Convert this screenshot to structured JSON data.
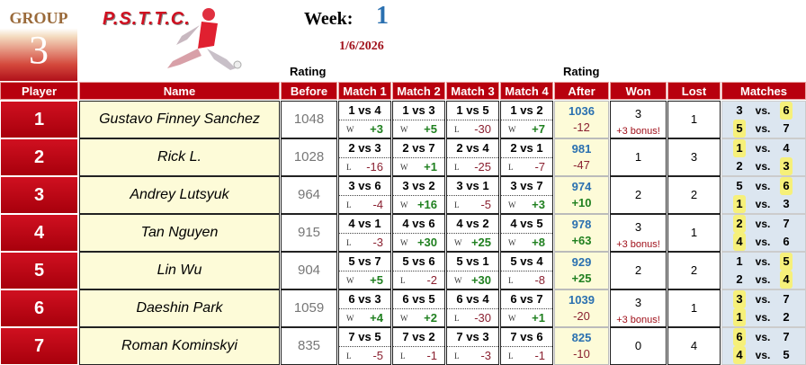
{
  "group": {
    "label": "GROUP",
    "number": "3"
  },
  "logo": {
    "text": "P.S.T.T.C."
  },
  "week": {
    "label": "Week:",
    "number": "1",
    "date": "1/6/2026"
  },
  "rating_label_before": "Rating",
  "rating_label_after": "Rating",
  "headers": [
    "Player",
    "Name",
    "Before",
    "Match 1",
    "Match 2",
    "Match 3",
    "Match 4",
    "After",
    "Won",
    "Lost",
    "Matches"
  ],
  "vs_label": "vs.",
  "colors": {
    "header": "#b8000e",
    "positive": "#208020",
    "negative": "#8a2030",
    "after_rating": "#2a70b0",
    "highlight": "#f6f07a"
  },
  "rows": [
    {
      "player": "1",
      "name": "Gustavo Finney Sanchez",
      "before": "1048",
      "matches": [
        {
          "vs": "1 vs 4",
          "wl": "W",
          "delta": "+3"
        },
        {
          "vs": "1 vs 3",
          "wl": "W",
          "delta": "+5"
        },
        {
          "vs": "1 vs 5",
          "wl": "L",
          "delta": "-30"
        },
        {
          "vs": "1 vs 2",
          "wl": "W",
          "delta": "+7"
        }
      ],
      "after": "1036",
      "change": "-12",
      "won": "3",
      "bonus": "+3 bonus!",
      "lost": "1",
      "pairs": [
        {
          "a": "3",
          "b": "6",
          "winner": "b"
        },
        {
          "a": "5",
          "b": "7",
          "winner": "a"
        }
      ]
    },
    {
      "player": "2",
      "name": "Rick L.",
      "before": "1028",
      "matches": [
        {
          "vs": "2 vs 3",
          "wl": "L",
          "delta": "-16"
        },
        {
          "vs": "2 vs 7",
          "wl": "W",
          "delta": "+1"
        },
        {
          "vs": "2 vs 4",
          "wl": "L",
          "delta": "-25"
        },
        {
          "vs": "2 vs 1",
          "wl": "L",
          "delta": "-7"
        }
      ],
      "after": "981",
      "change": "-47",
      "won": "1",
      "bonus": "",
      "lost": "3",
      "pairs": [
        {
          "a": "1",
          "b": "4",
          "winner": "a"
        },
        {
          "a": "2",
          "b": "3",
          "winner": "b"
        }
      ]
    },
    {
      "player": "3",
      "name": "Andrey Lutsyuk",
      "before": "964",
      "matches": [
        {
          "vs": "3 vs 6",
          "wl": "L",
          "delta": "-4"
        },
        {
          "vs": "3 vs 2",
          "wl": "W",
          "delta": "+16"
        },
        {
          "vs": "3 vs 1",
          "wl": "L",
          "delta": "-5"
        },
        {
          "vs": "3 vs 7",
          "wl": "W",
          "delta": "+3"
        }
      ],
      "after": "974",
      "change": "+10",
      "won": "2",
      "bonus": "",
      "lost": "2",
      "pairs": [
        {
          "a": "5",
          "b": "6",
          "winner": "b"
        },
        {
          "a": "1",
          "b": "3",
          "winner": "a"
        }
      ]
    },
    {
      "player": "4",
      "name": "Tan Nguyen",
      "before": "915",
      "matches": [
        {
          "vs": "4 vs 1",
          "wl": "L",
          "delta": "-3"
        },
        {
          "vs": "4 vs 6",
          "wl": "W",
          "delta": "+30"
        },
        {
          "vs": "4 vs 2",
          "wl": "W",
          "delta": "+25"
        },
        {
          "vs": "4 vs 5",
          "wl": "W",
          "delta": "+8"
        }
      ],
      "after": "978",
      "change": "+63",
      "won": "3",
      "bonus": "+3 bonus!",
      "lost": "1",
      "pairs": [
        {
          "a": "2",
          "b": "7",
          "winner": "a"
        },
        {
          "a": "4",
          "b": "6",
          "winner": "a"
        }
      ]
    },
    {
      "player": "5",
      "name": "Lin Wu",
      "before": "904",
      "matches": [
        {
          "vs": "5 vs 7",
          "wl": "W",
          "delta": "+5"
        },
        {
          "vs": "5 vs 6",
          "wl": "L",
          "delta": "-2"
        },
        {
          "vs": "5 vs 1",
          "wl": "W",
          "delta": "+30"
        },
        {
          "vs": "5 vs 4",
          "wl": "L",
          "delta": "-8"
        }
      ],
      "after": "929",
      "change": "+25",
      "won": "2",
      "bonus": "",
      "lost": "2",
      "pairs": [
        {
          "a": "1",
          "b": "5",
          "winner": "b"
        },
        {
          "a": "2",
          "b": "4",
          "winner": "b"
        }
      ]
    },
    {
      "player": "6",
      "name": "Daeshin Park",
      "before": "1059",
      "matches": [
        {
          "vs": "6 vs 3",
          "wl": "W",
          "delta": "+4"
        },
        {
          "vs": "6 vs 5",
          "wl": "W",
          "delta": "+2"
        },
        {
          "vs": "6 vs 4",
          "wl": "L",
          "delta": "-30"
        },
        {
          "vs": "6 vs 7",
          "wl": "W",
          "delta": "+1"
        }
      ],
      "after": "1039",
      "change": "-20",
      "won": "3",
      "bonus": "+3 bonus!",
      "lost": "1",
      "pairs": [
        {
          "a": "3",
          "b": "7",
          "winner": "a"
        },
        {
          "a": "1",
          "b": "2",
          "winner": "a"
        }
      ]
    },
    {
      "player": "7",
      "name": "Roman Kominskyi",
      "before": "835",
      "matches": [
        {
          "vs": "7 vs 5",
          "wl": "L",
          "delta": "-5"
        },
        {
          "vs": "7 vs 2",
          "wl": "L",
          "delta": "-1"
        },
        {
          "vs": "7 vs 3",
          "wl": "L",
          "delta": "-3"
        },
        {
          "vs": "7 vs 6",
          "wl": "L",
          "delta": "-1"
        }
      ],
      "after": "825",
      "change": "-10",
      "won": "0",
      "bonus": "",
      "lost": "4",
      "pairs": [
        {
          "a": "6",
          "b": "7",
          "winner": "a"
        },
        {
          "a": "4",
          "b": "5",
          "winner": "a"
        }
      ]
    }
  ]
}
